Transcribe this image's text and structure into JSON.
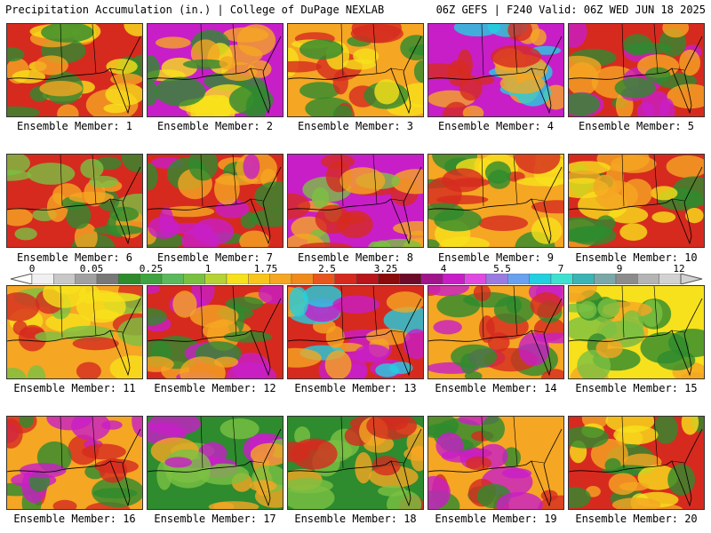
{
  "header": {
    "left": "Precipitation Accumulation (in.) | College of DuPage NEXLAB",
    "right": "06Z GEFS | F240 Valid: 06Z WED JUN 18 2025"
  },
  "member_label_prefix": "Ensemble Member: ",
  "members": [
    {
      "number": "1",
      "palette": [
        "#d62a1f",
        "#f5a623",
        "#f7e11c",
        "#2e8b2e"
      ]
    },
    {
      "number": "2",
      "palette": [
        "#c81ec8",
        "#f5a623",
        "#2e8b2e",
        "#f7e11c"
      ]
    },
    {
      "number": "3",
      "palette": [
        "#f5a623",
        "#2e8b2e",
        "#f7e11c",
        "#d62a1f"
      ]
    },
    {
      "number": "4",
      "palette": [
        "#c81ec8",
        "#d62a1f",
        "#f5a623",
        "#22d0e0"
      ]
    },
    {
      "number": "5",
      "palette": [
        "#d62a1f",
        "#c81ec8",
        "#2e8b2e",
        "#f5a623"
      ]
    },
    {
      "number": "6",
      "palette": [
        "#d62a1f",
        "#2e8b2e",
        "#f5a623",
        "#7ac142"
      ]
    },
    {
      "number": "7",
      "palette": [
        "#d62a1f",
        "#2e8b2e",
        "#f5a623",
        "#c81ec8"
      ]
    },
    {
      "number": "8",
      "palette": [
        "#c81ec8",
        "#d62a1f",
        "#f5a623",
        "#7ac142"
      ]
    },
    {
      "number": "9",
      "palette": [
        "#f5a623",
        "#d62a1f",
        "#2e8b2e",
        "#f7e11c"
      ]
    },
    {
      "number": "10",
      "palette": [
        "#d62a1f",
        "#2e8b2e",
        "#f5a623",
        "#f7e11c"
      ]
    },
    {
      "number": "11",
      "palette": [
        "#f5a623",
        "#d62a1f",
        "#f7e11c",
        "#7ac142"
      ]
    },
    {
      "number": "12",
      "palette": [
        "#d62a1f",
        "#c81ec8",
        "#f5a623",
        "#2e8b2e"
      ]
    },
    {
      "number": "13",
      "palette": [
        "#d62a1f",
        "#c81ec8",
        "#f5a623",
        "#22d0e0"
      ]
    },
    {
      "number": "14",
      "palette": [
        "#f5a623",
        "#d62a1f",
        "#2e8b2e",
        "#c81ec8"
      ]
    },
    {
      "number": "15",
      "palette": [
        "#f7e11c",
        "#2e8b2e",
        "#f5a623",
        "#7ac142"
      ]
    },
    {
      "number": "16",
      "palette": [
        "#f5a623",
        "#d62a1f",
        "#c81ec8",
        "#2e8b2e"
      ]
    },
    {
      "number": "17",
      "palette": [
        "#2e8b2e",
        "#f5a623",
        "#c81ec8",
        "#7ac142"
      ]
    },
    {
      "number": "18",
      "palette": [
        "#2e8b2e",
        "#f5a623",
        "#d62a1f",
        "#7ac142"
      ]
    },
    {
      "number": "19",
      "palette": [
        "#f5a623",
        "#2e8b2e",
        "#c81ec8",
        "#d62a1f"
      ]
    },
    {
      "number": "20",
      "palette": [
        "#d62a1f",
        "#f5a623",
        "#2e8b2e",
        "#f7e11c"
      ]
    }
  ],
  "colorbar": {
    "tick_labels": [
      "0",
      "0.05",
      "0.25",
      "1",
      "1.75",
      "2.5",
      "3.25",
      "4",
      "5.5",
      "7",
      "9",
      "12"
    ],
    "colors": [
      "#f0f0f0",
      "#c8c8c8",
      "#a0a0a0",
      "#787878",
      "#2e8b2e",
      "#3fa33f",
      "#5cb85c",
      "#7ac142",
      "#b5d334",
      "#f7e11c",
      "#f9c51b",
      "#f5a623",
      "#f08a1c",
      "#e8561e",
      "#d62a1f",
      "#b8161a",
      "#8b0a0a",
      "#6d0a2a",
      "#a0148c",
      "#c81ec8",
      "#e04ae0",
      "#9a7be0",
      "#6aa0f0",
      "#22d0e0",
      "#40e0d0",
      "#3cb4b4",
      "#7aa8a8",
      "#8c8c8c",
      "#b4b4b4",
      "#d2d2d2"
    ]
  }
}
